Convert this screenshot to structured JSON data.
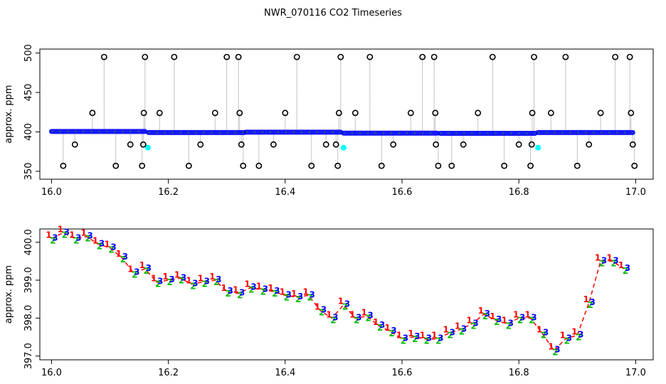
{
  "title": "NWR_070116  CO2 Timeseries",
  "colors": {
    "baseline": "#0000ff",
    "baseline_accent": "#00aa00",
    "outlier_ring": "#000000",
    "outlier_fill": "#00ffff",
    "dotted_line": "#888888",
    "digit_1": "#ff0000",
    "digit_2": "#00bb00",
    "digit_3": "#0000ff",
    "connector": "#ff0000"
  },
  "chart_data": [
    {
      "type": "scatter",
      "ylabel": "approx. ppm",
      "xlabel": "",
      "xlim": [
        15.98,
        17.03
      ],
      "ylim": [
        340,
        505
      ],
      "xticks": [
        "16.0",
        "16.2",
        "16.4",
        "16.6",
        "16.8",
        "17.0"
      ],
      "yticks": [
        "350",
        "400",
        "450",
        "500"
      ],
      "segments": [
        {
          "x_start": 16.0,
          "x_end": 16.16,
          "y": 400.5
        },
        {
          "x_start": 16.166,
          "x_end": 16.33,
          "y": 399.2
        },
        {
          "x_start": 16.333,
          "x_end": 16.495,
          "y": 399.6
        },
        {
          "x_start": 16.5,
          "x_end": 16.66,
          "y": 398.4
        },
        {
          "x_start": 16.665,
          "x_end": 16.828,
          "y": 398.2
        },
        {
          "x_start": 16.833,
          "x_end": 16.995,
          "y": 399.2
        }
      ],
      "outliers": [
        {
          "x": 16.02,
          "y": 357
        },
        {
          "x": 16.04,
          "y": 384
        },
        {
          "x": 16.07,
          "y": 424
        },
        {
          "x": 16.09,
          "y": 495
        },
        {
          "x": 16.11,
          "y": 357
        },
        {
          "x": 16.135,
          "y": 384
        },
        {
          "x": 16.155,
          "y": 357
        },
        {
          "x": 16.158,
          "y": 424
        },
        {
          "x": 16.16,
          "y": 495
        },
        {
          "x": 16.157,
          "y": 384
        },
        {
          "x": 16.185,
          "y": 424
        },
        {
          "x": 16.21,
          "y": 495
        },
        {
          "x": 16.235,
          "y": 357
        },
        {
          "x": 16.255,
          "y": 384
        },
        {
          "x": 16.28,
          "y": 424
        },
        {
          "x": 16.3,
          "y": 495
        },
        {
          "x": 16.32,
          "y": 495
        },
        {
          "x": 16.322,
          "y": 424
        },
        {
          "x": 16.325,
          "y": 384
        },
        {
          "x": 16.328,
          "y": 357
        },
        {
          "x": 16.355,
          "y": 357
        },
        {
          "x": 16.38,
          "y": 384
        },
        {
          "x": 16.4,
          "y": 424
        },
        {
          "x": 16.42,
          "y": 495
        },
        {
          "x": 16.445,
          "y": 357
        },
        {
          "x": 16.47,
          "y": 384
        },
        {
          "x": 16.49,
          "y": 357
        },
        {
          "x": 16.492,
          "y": 424
        },
        {
          "x": 16.495,
          "y": 495
        },
        {
          "x": 16.487,
          "y": 384
        },
        {
          "x": 16.52,
          "y": 424
        },
        {
          "x": 16.545,
          "y": 495
        },
        {
          "x": 16.565,
          "y": 357
        },
        {
          "x": 16.585,
          "y": 384
        },
        {
          "x": 16.615,
          "y": 424
        },
        {
          "x": 16.635,
          "y": 495
        },
        {
          "x": 16.655,
          "y": 495
        },
        {
          "x": 16.657,
          "y": 424
        },
        {
          "x": 16.658,
          "y": 384
        },
        {
          "x": 16.662,
          "y": 357
        },
        {
          "x": 16.685,
          "y": 357
        },
        {
          "x": 16.705,
          "y": 384
        },
        {
          "x": 16.73,
          "y": 424
        },
        {
          "x": 16.755,
          "y": 495
        },
        {
          "x": 16.775,
          "y": 357
        },
        {
          "x": 16.8,
          "y": 384
        },
        {
          "x": 16.82,
          "y": 357
        },
        {
          "x": 16.823,
          "y": 424
        },
        {
          "x": 16.826,
          "y": 495
        },
        {
          "x": 16.822,
          "y": 384
        },
        {
          "x": 16.855,
          "y": 424
        },
        {
          "x": 16.88,
          "y": 495
        },
        {
          "x": 16.9,
          "y": 357
        },
        {
          "x": 16.92,
          "y": 384
        },
        {
          "x": 16.94,
          "y": 424
        },
        {
          "x": 16.965,
          "y": 495
        },
        {
          "x": 16.99,
          "y": 495
        },
        {
          "x": 16.992,
          "y": 424
        },
        {
          "x": 16.995,
          "y": 384
        },
        {
          "x": 16.998,
          "y": 357
        }
      ],
      "highlighted": [
        {
          "x": 16.165,
          "y": 380
        },
        {
          "x": 16.5,
          "y": 380
        },
        {
          "x": 16.833,
          "y": 380
        }
      ]
    },
    {
      "type": "line",
      "ylabel": "approx. ppm",
      "xlabel": "",
      "xlim": [
        15.98,
        17.03
      ],
      "ylim": [
        396.9,
        400.35
      ],
      "xticks": [
        "16.0",
        "16.2",
        "16.4",
        "16.6",
        "16.8",
        "17.0"
      ],
      "yticks": [
        "397.0",
        "398.0",
        "399.0",
        "400.0"
      ],
      "x": [
        16.0,
        16.02,
        16.04,
        16.06,
        16.08,
        16.1,
        16.12,
        16.14,
        16.16,
        16.18,
        16.2,
        16.22,
        16.24,
        16.26,
        16.28,
        16.3,
        16.32,
        16.34,
        16.36,
        16.38,
        16.4,
        16.42,
        16.44,
        16.46,
        16.48,
        16.5,
        16.52,
        16.54,
        16.56,
        16.58,
        16.6,
        16.62,
        16.64,
        16.66,
        16.68,
        16.7,
        16.72,
        16.74,
        16.76,
        16.78,
        16.8,
        16.82,
        16.84,
        16.86,
        16.88,
        16.9,
        16.92,
        16.94,
        16.96,
        16.98
      ],
      "y": [
        400.1,
        400.25,
        400.1,
        400.15,
        399.95,
        399.85,
        399.6,
        399.2,
        399.3,
        398.95,
        399.0,
        399.05,
        398.9,
        398.95,
        399.0,
        398.7,
        398.65,
        398.8,
        398.75,
        398.7,
        398.6,
        398.55,
        398.6,
        398.2,
        398.0,
        398.35,
        398.0,
        398.05,
        397.8,
        397.65,
        397.45,
        397.5,
        397.45,
        397.45,
        397.6,
        397.7,
        397.85,
        398.1,
        397.95,
        397.85,
        398.0,
        398.0,
        397.6,
        397.15,
        397.45,
        397.55,
        398.4,
        399.5,
        399.5,
        399.3
      ]
    }
  ]
}
